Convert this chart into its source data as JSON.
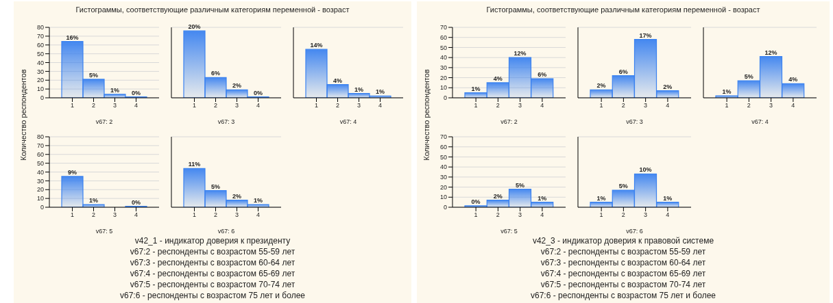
{
  "chart_data": [
    {
      "type": "bar",
      "title": "Гистограммы, соответствующие различным категориям переменной - возраст",
      "ylabel": "Количество респондентов",
      "xlabel": "v67: 2",
      "categories": [
        "1",
        "2",
        "3",
        "4"
      ],
      "values": [
        64,
        21,
        4,
        1
      ],
      "color": "#3b82f0",
      "ylim": [
        0,
        80
      ],
      "yticks": [
        0,
        10,
        20,
        30,
        40,
        50,
        60,
        70,
        80
      ],
      "grid": "y",
      "annotations": [
        {
          "text": "16%",
          "x": "1",
          "y": 64
        },
        {
          "text": "5%",
          "x": "2",
          "y": 21
        },
        {
          "text": "1%",
          "x": "3",
          "y": 4
        },
        {
          "text": "0%",
          "x": "4",
          "y": 1
        }
      ]
    },
    {
      "type": "bar",
      "xlabel": "v67: 3",
      "categories": [
        "1",
        "2",
        "3",
        "4"
      ],
      "values": [
        76,
        23,
        9,
        1
      ],
      "color": "#3b82f0",
      "ylim": [
        0,
        80
      ],
      "yticks": [
        0,
        10,
        20,
        30,
        40,
        50,
        60,
        70,
        80
      ],
      "grid": "y",
      "tick_labels": "x",
      "annotations": [
        {
          "text": "20%",
          "x": "1",
          "y": 76
        },
        {
          "text": "6%",
          "x": "2",
          "y": 23
        },
        {
          "text": "2%",
          "x": "3",
          "y": 9
        },
        {
          "text": "0%",
          "x": "4",
          "y": 1
        }
      ]
    },
    {
      "type": "bar",
      "xlabel": "v67: 4",
      "categories": [
        "1",
        "2",
        "3",
        "4"
      ],
      "values": [
        55,
        15,
        5,
        2
      ],
      "color": "#3b82f0",
      "ylim": [
        0,
        80
      ],
      "yticks": [
        0,
        10,
        20,
        30,
        40,
        50,
        60,
        70,
        80
      ],
      "grid": "y",
      "tick_labels": "x",
      "annotations": [
        {
          "text": "14%",
          "x": "1",
          "y": 55
        },
        {
          "text": "4%",
          "x": "2",
          "y": 15
        },
        {
          "text": "1%",
          "x": "3",
          "y": 5
        },
        {
          "text": "1%",
          "x": "4",
          "y": 2
        }
      ]
    },
    {
      "type": "bar",
      "xlabel": "v67: 5",
      "categories": [
        "1",
        "2",
        "3",
        "4"
      ],
      "values": [
        35,
        3,
        0,
        1
      ],
      "color": "#3b82f0",
      "ylim": [
        0,
        80
      ],
      "yticks": [
        0,
        10,
        20,
        30,
        40,
        50,
        60,
        70,
        80
      ],
      "grid": "y",
      "annotations": [
        {
          "text": "9%",
          "x": "1",
          "y": 35
        },
        {
          "text": "1%",
          "x": "2",
          "y": 3
        },
        {
          "text": "0%",
          "x": "4",
          "y": 1
        }
      ]
    },
    {
      "type": "bar",
      "xlabel": "v67: 6",
      "categories": [
        "1",
        "2",
        "3",
        "4"
      ],
      "values": [
        44,
        19,
        8,
        3
      ],
      "color": "#3b82f0",
      "ylim": [
        0,
        80
      ],
      "yticks": [
        0,
        10,
        20,
        30,
        40,
        50,
        60,
        70,
        80
      ],
      "grid": "y",
      "tick_labels": "x",
      "annotations": [
        {
          "text": "11%",
          "x": "1",
          "y": 44
        },
        {
          "text": "5%",
          "x": "2",
          "y": 19
        },
        {
          "text": "2%",
          "x": "3",
          "y": 8
        },
        {
          "text": "1%",
          "x": "4",
          "y": 3
        },
        "v42_1 - индикатор доверия к президенту",
        "v67:2 - респонденты с возрастом 55-59 лет",
        "v67:3 - респонденты с возрастом 60-64 лет",
        "v67:4 - респонденты с возрастом 65-69 лет",
        "v67:5 - респонденты с возрастом 70-74 лет",
        "v67:6 - респонденты с возрастом 75 лет и более"
      ]
    },
    {
      "type": "bar",
      "title": "Гистограммы, соответствующие различным категориям переменной - возраст",
      "ylabel": "Количество респондентов",
      "xlabel": "v67: 2",
      "categories": [
        "1",
        "2",
        "3",
        "4"
      ],
      "values": [
        5,
        15,
        40,
        19
      ],
      "color": "#3b82f0",
      "ylim": [
        0,
        70
      ],
      "yticks": [
        0,
        10,
        20,
        30,
        40,
        50,
        60,
        70
      ],
      "grid": "y",
      "annotations": [
        {
          "text": "1%",
          "x": "1",
          "y": 5
        },
        {
          "text": "4%",
          "x": "2",
          "y": 15
        },
        {
          "text": "12%",
          "x": "3",
          "y": 40
        },
        {
          "text": "6%",
          "x": "4",
          "y": 19
        }
      ]
    },
    {
      "type": "bar",
      "xlabel": "v67: 3",
      "categories": [
        "1",
        "2",
        "3",
        "4"
      ],
      "values": [
        8,
        22,
        58,
        7
      ],
      "color": "#3b82f0",
      "ylim": [
        0,
        70
      ],
      "yticks": [
        0,
        10,
        20,
        30,
        40,
        50,
        60,
        70
      ],
      "grid": "y",
      "tick_labels": "x",
      "annotations": [
        {
          "text": "2%",
          "x": "1",
          "y": 8
        },
        {
          "text": "6%",
          "x": "2",
          "y": 22
        },
        {
          "text": "17%",
          "x": "3",
          "y": 58
        },
        {
          "text": "2%",
          "x": "4",
          "y": 7
        }
      ]
    },
    {
      "type": "bar",
      "xlabel": "v67: 4",
      "categories": [
        "1",
        "2",
        "3",
        "4"
      ],
      "values": [
        2,
        17,
        41,
        14
      ],
      "color": "#3b82f0",
      "ylim": [
        0,
        70
      ],
      "yticks": [
        0,
        10,
        20,
        30,
        40,
        50,
        60,
        70
      ],
      "grid": "y",
      "tick_labels": "x",
      "annotations": [
        {
          "text": "1%",
          "x": "1",
          "y": 2
        },
        {
          "text": "5%",
          "x": "2",
          "y": 17
        },
        {
          "text": "12%",
          "x": "3",
          "y": 41
        },
        {
          "text": "4%",
          "x": "4",
          "y": 14
        }
      ]
    },
    {
      "type": "bar",
      "xlabel": "v67: 5",
      "categories": [
        "1",
        "2",
        "3",
        "4"
      ],
      "values": [
        1.5,
        7,
        18,
        5
      ],
      "color": "#3b82f0",
      "ylim": [
        0,
        70
      ],
      "yticks": [
        0,
        10,
        20,
        30,
        40,
        50,
        60,
        70
      ],
      "grid": "y",
      "annotations": [
        {
          "text": "0%",
          "x": "1",
          "y": 1.5
        },
        {
          "text": "2%",
          "x": "2",
          "y": 7
        },
        {
          "text": "5%",
          "x": "3",
          "y": 18
        },
        {
          "text": "1%",
          "x": "4",
          "y": 5
        }
      ]
    },
    {
      "type": "bar",
      "xlabel": "v67: 6",
      "categories": [
        "1",
        "2",
        "3",
        "4"
      ],
      "values": [
        5,
        17,
        33,
        5
      ],
      "color": "#3b82f0",
      "ylim": [
        0,
        70
      ],
      "yticks": [
        0,
        10,
        20,
        30,
        40,
        50,
        60,
        70
      ],
      "grid": "y",
      "tick_labels": "x",
      "annotations": [
        {
          "text": "1%",
          "x": "1",
          "y": 5
        },
        {
          "text": "5%",
          "x": "2",
          "y": 17
        },
        {
          "text": "10%",
          "x": "3",
          "y": 33
        },
        {
          "text": "1%",
          "x": "4",
          "y": 5
        },
        "v42_3 - индикатор доверия к правовой системе",
        "v67:2 - респонденты с возрастом 55-59 лет",
        "v67:3 - респонденты с возрастом 60-64 лет",
        "v67:4 - респонденты с возрастом 65-69 лет",
        "v67:5 - респонденты с возрастом 70-74 лет",
        "v67:6 - респонденты с возрастом 75 лет и более"
      ]
    }
  ]
}
